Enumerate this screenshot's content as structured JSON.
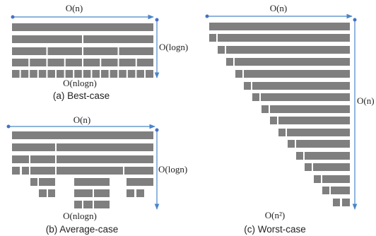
{
  "colors": {
    "bar": "#7f7f7f",
    "arrow": "#4a86c8",
    "dot": "#4472c4",
    "text": "#222222"
  },
  "panels": [
    {
      "caption": "(a) Best-case",
      "width_label": "O(n)",
      "height_label": "O(logn)",
      "cost_label": "O(nlogn)",
      "level_partitions": [
        1,
        2,
        4,
        8,
        16
      ]
    },
    {
      "caption": "(b) Average-case",
      "width_label": "O(n)",
      "height_label": "O(logn)",
      "cost_label": "O(nlogn)",
      "level_partitions": [
        1,
        2,
        3,
        5,
        4,
        6,
        3
      ]
    },
    {
      "caption": "(c) Worst-case",
      "width_label": "O(n)",
      "height_label": "O(n)",
      "cost_label": "O(n²)",
      "level_partitions": [
        1,
        2,
        2,
        2,
        2,
        2,
        2,
        2,
        2,
        2,
        2,
        2,
        2,
        2,
        2,
        2,
        2,
        2,
        2,
        2
      ]
    }
  ]
}
